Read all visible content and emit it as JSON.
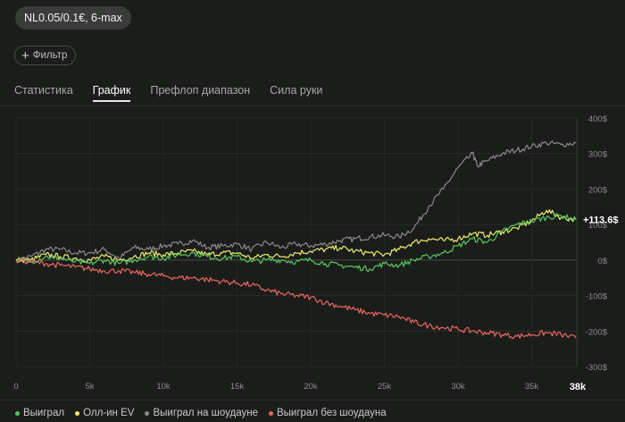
{
  "header": {
    "game_chip": "NL0.05/0.1€, 6-max"
  },
  "filter": {
    "label": "Фильтр",
    "icon": "plus-icon"
  },
  "tabs": [
    {
      "label": "Статистика",
      "active": false
    },
    {
      "label": "График",
      "active": true
    },
    {
      "label": "Префлоп диапазон",
      "active": false
    },
    {
      "label": "Сила руки",
      "active": false
    }
  ],
  "colors": {
    "won": "#58c75a",
    "allin_ev": "#ecec6e",
    "showdown": "#8a8a8a",
    "non_showdown": "#e8675e"
  },
  "chart_data": {
    "type": "line",
    "x_unit": "hands",
    "xlim": [
      0,
      38000
    ],
    "ylim": [
      -300,
      400
    ],
    "x_ticks": [
      "0",
      "5k",
      "10k",
      "15k",
      "20k",
      "25k",
      "30k",
      "35k"
    ],
    "x_tick_values": [
      0,
      5000,
      10000,
      15000,
      20000,
      25000,
      30000,
      35000
    ],
    "x_end_label": "38k",
    "y_ticks": [
      "400$",
      "300$",
      "200$",
      "100$",
      "0$",
      "-100$",
      "-200$",
      "-300$"
    ],
    "y_tick_values": [
      400,
      300,
      200,
      100,
      0,
      -100,
      -200,
      -300
    ],
    "end_value_label": "+113.6$",
    "series": [
      {
        "name": "Выиграл на шоудауне",
        "color_key": "showdown",
        "x": [
          0,
          1000,
          2000,
          3000,
          4000,
          5000,
          6000,
          7000,
          8000,
          9000,
          10000,
          11000,
          12000,
          13000,
          14000,
          15000,
          16000,
          17000,
          18000,
          19000,
          20000,
          21000,
          22000,
          23000,
          24000,
          25000,
          26000,
          27000,
          28000,
          29000,
          30000,
          31000,
          31300,
          32000,
          33000,
          34000,
          35000,
          36000,
          37000,
          38000
        ],
        "values": [
          0,
          10,
          30,
          30,
          20,
          20,
          30,
          5,
          35,
          30,
          40,
          45,
          55,
          35,
          40,
          45,
          30,
          50,
          35,
          45,
          40,
          45,
          55,
          60,
          65,
          70,
          65,
          90,
          150,
          200,
          260,
          300,
          265,
          280,
          300,
          310,
          320,
          330,
          325,
          330
        ]
      },
      {
        "name": "Олл-ин EV",
        "color_key": "allin_ev",
        "x": [
          0,
          1000,
          2000,
          3000,
          4000,
          5000,
          6000,
          7000,
          8000,
          9000,
          10000,
          11000,
          12000,
          13000,
          14000,
          15000,
          16000,
          17000,
          18000,
          19000,
          20000,
          21000,
          22000,
          23000,
          24000,
          25000,
          26000,
          27000,
          28000,
          29000,
          30000,
          31000,
          32000,
          33000,
          34000,
          35000,
          36000,
          37000,
          38000
        ],
        "values": [
          0,
          0,
          15,
          10,
          5,
          0,
          10,
          0,
          10,
          20,
          15,
          20,
          25,
          15,
          20,
          20,
          5,
          15,
          10,
          20,
          25,
          30,
          35,
          25,
          20,
          15,
          30,
          50,
          60,
          55,
          60,
          75,
          70,
          80,
          90,
          110,
          140,
          120,
          113.6
        ]
      },
      {
        "name": "Выиграл",
        "color_key": "won",
        "x": [
          0,
          1000,
          2000,
          3000,
          4000,
          5000,
          6000,
          7000,
          8000,
          9000,
          10000,
          11000,
          12000,
          13000,
          14000,
          15000,
          16000,
          17000,
          18000,
          19000,
          20000,
          21000,
          22000,
          23000,
          24000,
          25000,
          26000,
          27000,
          28000,
          29000,
          30000,
          31000,
          32000,
          33000,
          34000,
          35000,
          36000,
          37000,
          38000
        ],
        "values": [
          0,
          -5,
          10,
          5,
          -5,
          -10,
          0,
          -10,
          0,
          10,
          5,
          15,
          20,
          10,
          5,
          10,
          -5,
          0,
          0,
          -5,
          0,
          -10,
          -15,
          -20,
          -25,
          -10,
          -15,
          0,
          10,
          20,
          40,
          60,
          50,
          80,
          100,
          110,
          120,
          125,
          113.6
        ]
      },
      {
        "name": "Выиграл без шоудауна",
        "color_key": "non_showdown",
        "x": [
          0,
          1000,
          2000,
          3000,
          4000,
          5000,
          6000,
          7000,
          8000,
          9000,
          10000,
          11000,
          12000,
          13000,
          14000,
          15000,
          16000,
          17000,
          18000,
          19000,
          20000,
          21000,
          22000,
          23000,
          24000,
          25000,
          26000,
          27000,
          28000,
          29000,
          30000,
          31000,
          32000,
          33000,
          34000,
          35000,
          36000,
          37000,
          38000
        ],
        "values": [
          0,
          -5,
          -10,
          -15,
          -20,
          -25,
          -30,
          -30,
          -35,
          -40,
          -45,
          -50,
          -50,
          -55,
          -60,
          -65,
          -70,
          -85,
          -95,
          -100,
          -105,
          -120,
          -130,
          -140,
          -150,
          -155,
          -160,
          -175,
          -185,
          -190,
          -195,
          -200,
          -205,
          -210,
          -215,
          -210,
          -205,
          -210,
          -220
        ]
      }
    ]
  },
  "legend": [
    {
      "label": "Выиграл",
      "color_key": "won"
    },
    {
      "label": "Олл-ин EV",
      "color_key": "allin_ev"
    },
    {
      "label": "Выиграл на шоудауне",
      "color_key": "showdown"
    },
    {
      "label": "Выиграл без шоудауна",
      "color_key": "non_showdown"
    }
  ]
}
